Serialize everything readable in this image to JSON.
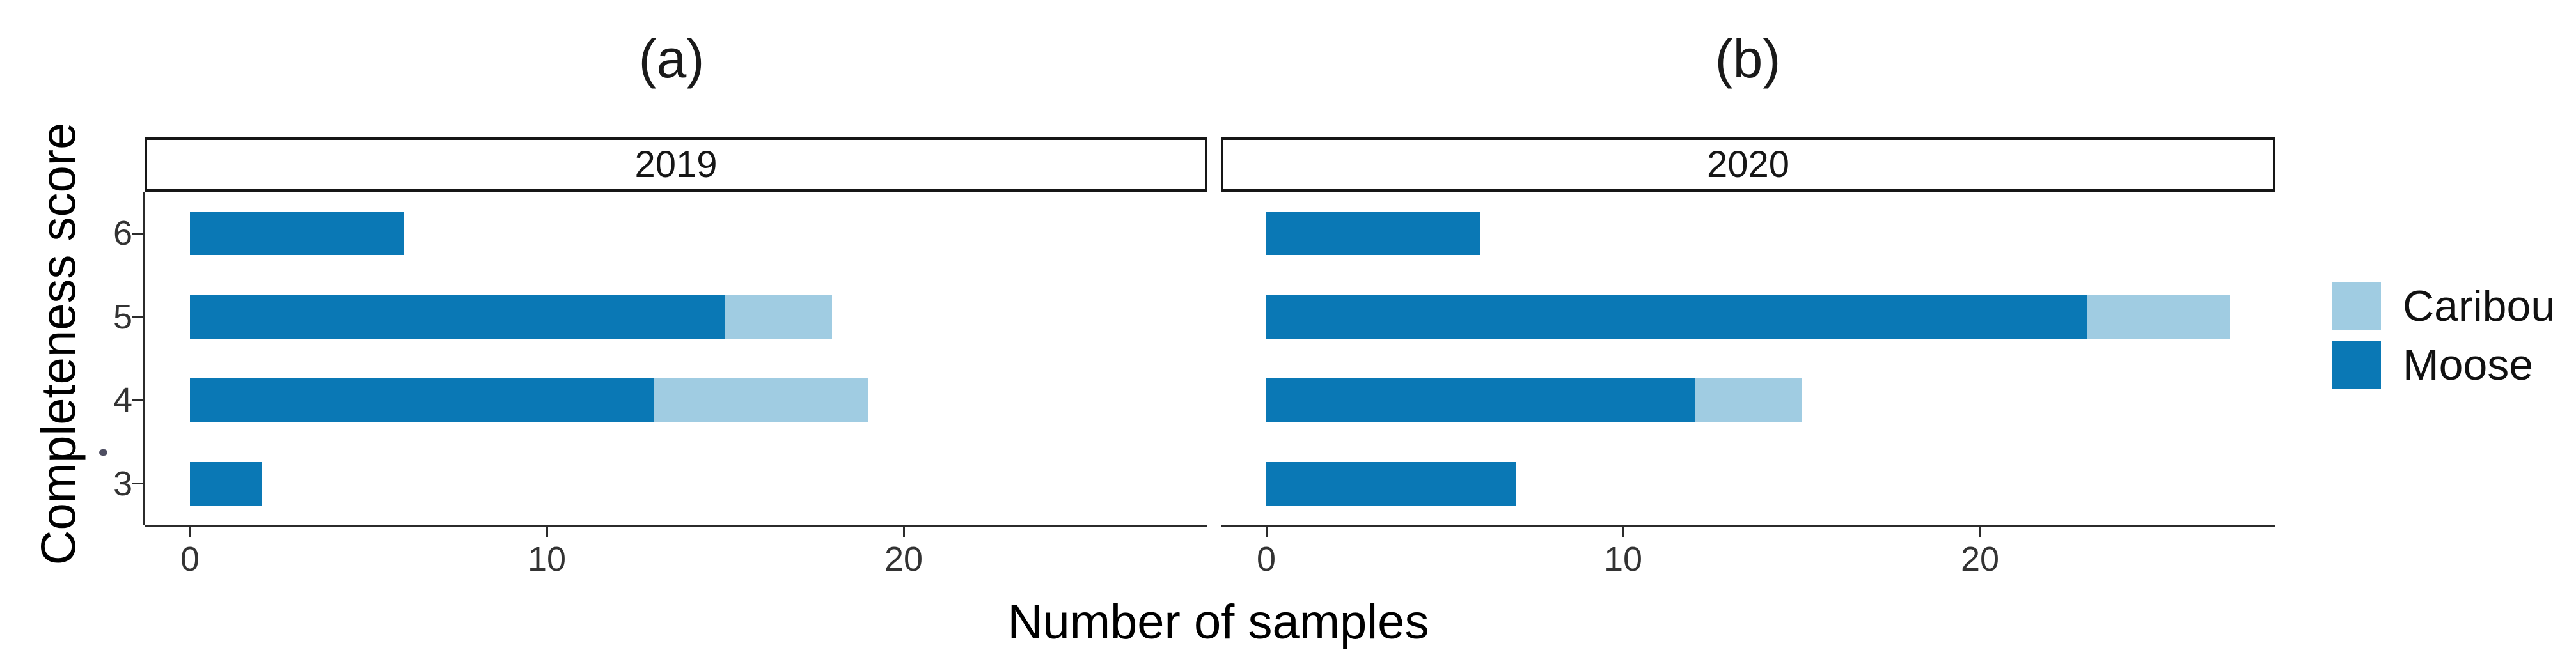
{
  "panel_titles": {
    "a": "(a)",
    "b": "(b)"
  },
  "axes": {
    "y_title": "Completeness score",
    "x_title": "Number of samples",
    "y_tick_labels": [
      "6",
      "5",
      "4",
      "3"
    ],
    "x_tick_labels": [
      "0",
      "10",
      "20"
    ]
  },
  "legend": {
    "position": "right",
    "items": [
      {
        "label": "Caribou",
        "color": "#a0cce2"
      },
      {
        "label": "Moose",
        "color": "#0a78b5"
      }
    ]
  },
  "chart_data": {
    "type": "bar",
    "orientation": "horizontal",
    "stacked": true,
    "title": "",
    "xlabel": "Number of samples",
    "ylabel": "Completeness score",
    "y_categories": [
      "6",
      "5",
      "4",
      "3"
    ],
    "x_ticks": [
      0,
      10,
      20
    ],
    "xlim": [
      -1.27,
      28.5
    ],
    "grid": false,
    "legend_position": "right",
    "series_colors": {
      "Moose": "#0a78b5",
      "Caribou": "#a0cce2"
    },
    "facets": [
      {
        "title": "(a)",
        "strip_label": "2019",
        "series": [
          {
            "name": "Moose",
            "values": [
              6,
              15,
              13,
              2
            ]
          },
          {
            "name": "Caribou",
            "values": [
              0,
              3,
              6,
              0
            ]
          }
        ]
      },
      {
        "title": "(b)",
        "strip_label": "2020",
        "series": [
          {
            "name": "Moose",
            "values": [
              6,
              23,
              12,
              7
            ]
          },
          {
            "name": "Caribou",
            "values": [
              0,
              4,
              3,
              0
            ]
          }
        ]
      }
    ]
  }
}
